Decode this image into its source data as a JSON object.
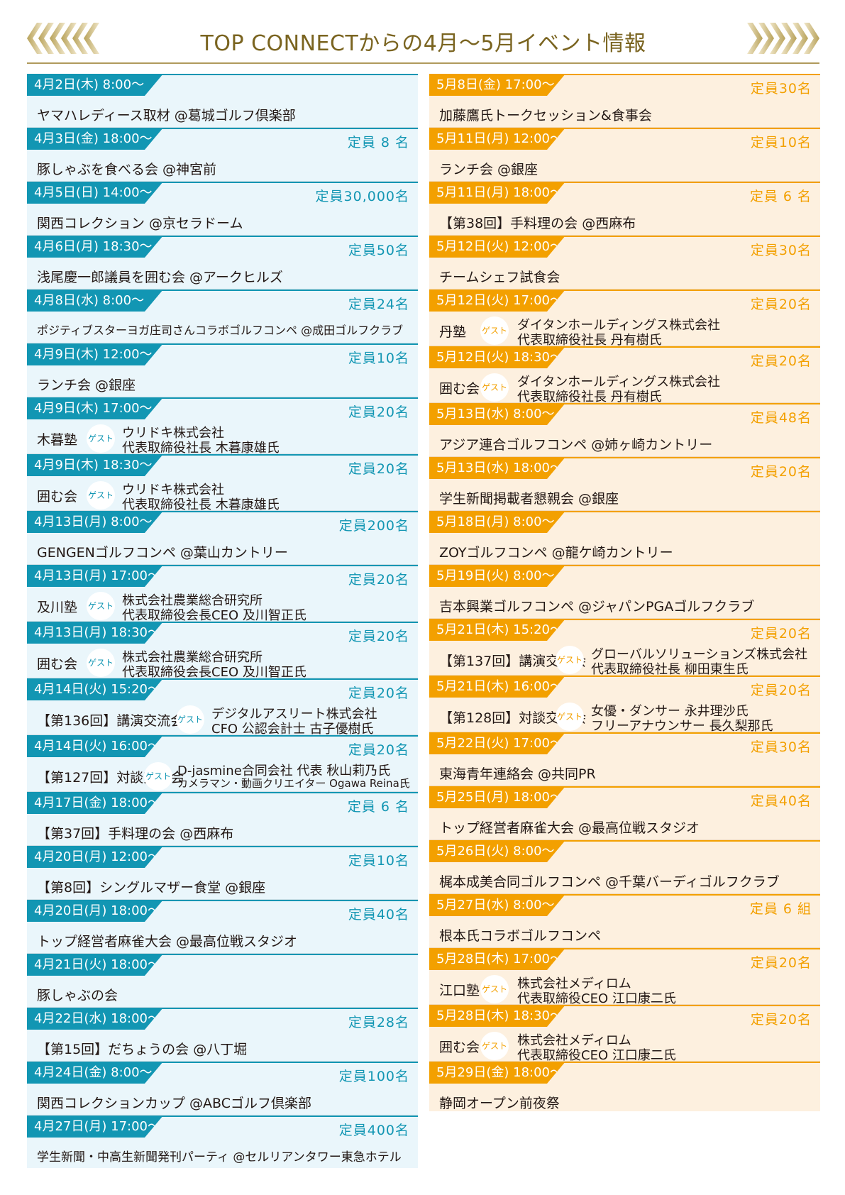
{
  "header": {
    "title": "TOP CONNECTからの4月〜5月イベント情報"
  },
  "april": [
    {
      "date": "4月2日(木) 8:00〜",
      "capacity": "",
      "title": "ヤマハレディース取材 @葛城ゴルフ倶楽部"
    },
    {
      "date": "4月3日(金) 18:00〜",
      "capacity": "定員 8 名",
      "title": "豚しゃぶを食べる会 @神宮前"
    },
    {
      "date": "4月5日(日) 14:00〜",
      "capacity": "定員30,000名",
      "title": "関西コレクション @京セラドーム"
    },
    {
      "date": "4月6日(月) 18:30〜",
      "capacity": "定員50名",
      "title": "浅尾慶一郎議員を囲む会 @アークヒルズ"
    },
    {
      "date": "4月8日(水) 8:00〜",
      "capacity": "定員24名",
      "title": "ポジティブスターヨガ庄司さんコラボゴルフコンペ @成田ゴルフクラブ"
    },
    {
      "date": "4月9日(木) 12:00〜",
      "capacity": "定員10名",
      "title": "ランチ会 @銀座"
    },
    {
      "date": "4月9日(木) 17:00〜",
      "capacity": "定員20名",
      "label": "木暮塾",
      "guest": "ゲスト",
      "g1": "ウリドキ株式会社",
      "g2": "代表取締役社長 木暮康雄氏"
    },
    {
      "date": "4月9日(木) 18:30〜",
      "capacity": "定員20名",
      "label": "囲む会",
      "guest": "ゲスト",
      "g1": "ウリドキ株式会社",
      "g2": "代表取締役社長 木暮康雄氏"
    },
    {
      "date": "4月13日(月) 8:00〜",
      "capacity": "定員200名",
      "title": "GENGENゴルフコンペ @葉山カントリー"
    },
    {
      "date": "4月13日(月) 17:00〜",
      "capacity": "定員20名",
      "label": "及川塾",
      "guest": "ゲスト",
      "g1": "株式会社農業総合研究所",
      "g2": "代表取締役会長CEO 及川智正氏"
    },
    {
      "date": "4月13日(月) 18:30〜",
      "capacity": "定員20名",
      "label": "囲む会",
      "guest": "ゲスト",
      "g1": "株式会社農業総合研究所",
      "g2": "代表取締役会長CEO 及川智正氏"
    },
    {
      "date": "4月14日(火) 15:20〜",
      "capacity": "定員20名",
      "label": "【第136回】講演交流会",
      "guest": "ゲスト",
      "g1": "デジタルアスリート株式会社",
      "g2": "CFO 公認会計士 古子優樹氏"
    },
    {
      "date": "4月14日(火) 16:00〜",
      "capacity": "定員20名",
      "label": "【第127回】対談交流会",
      "guest": "ゲスト",
      "g1": "D-jasmine合同会社 代表 秋山莉乃氏",
      "g2": "カメラマン・動画クリエイター Ogawa Reina氏"
    },
    {
      "date": "4月17日(金) 18:00〜",
      "capacity": "定員 6 名",
      "title": "【第37回】手料理の会 @西麻布"
    },
    {
      "date": "4月20日(月) 12:00〜",
      "capacity": "定員10名",
      "title": "【第8回】シングルマザー食堂 @銀座"
    },
    {
      "date": "4月20日(月) 18:00〜",
      "capacity": "定員40名",
      "title": "トップ経営者麻雀大会 @最高位戦スタジオ"
    },
    {
      "date": "4月21日(火) 18:00〜",
      "capacity": "",
      "title": "豚しゃぶの会"
    },
    {
      "date": "4月22日(水) 18:00〜",
      "capacity": "定員28名",
      "title": "【第15回】だちょうの会 @八丁堀"
    },
    {
      "date": "4月24日(金) 8:00〜",
      "capacity": "定員100名",
      "title": "関西コレクションカップ @ABCゴルフ倶楽部"
    },
    {
      "date": "4月27日(月) 17:00〜",
      "capacity": "定員400名",
      "title": "学生新聞・中高生新聞発刊パーティ @セルリアンタワー東急ホテル"
    }
  ],
  "may": [
    {
      "date": "5月8日(金) 17:00〜",
      "capacity": "定員30名",
      "title": "加藤鷹氏トークセッション&食事会"
    },
    {
      "date": "5月11日(月) 12:00〜",
      "capacity": "定員10名",
      "title": "ランチ会 @銀座"
    },
    {
      "date": "5月11日(月) 18:00〜",
      "capacity": "定員 6 名",
      "title": "【第38回】手料理の会 @西麻布"
    },
    {
      "date": "5月12日(火) 12:00〜",
      "capacity": "定員30名",
      "title": "チームシェフ試食会"
    },
    {
      "date": "5月12日(火) 17:00〜",
      "capacity": "定員20名",
      "label": "丹塾",
      "guest": "ゲスト",
      "g1": "ダイタンホールディングス株式会社",
      "g2": "代表取締役社長 丹有樹氏"
    },
    {
      "date": "5月12日(火) 18:30〜",
      "capacity": "定員20名",
      "label": "囲む会",
      "guest": "ゲスト",
      "g1": "ダイタンホールディングス株式会社",
      "g2": "代表取締役社長 丹有樹氏"
    },
    {
      "date": "5月13日(水) 8:00〜",
      "capacity": "定員48名",
      "title": "アジア連合ゴルフコンペ @姉ヶ崎カントリー"
    },
    {
      "date": "5月13日(水) 18:00〜",
      "capacity": "定員20名",
      "title": "学生新聞掲載者懇親会 @銀座"
    },
    {
      "date": "5月18日(月) 8:00〜",
      "capacity": "",
      "title": "ZOYゴルフコンペ @龍ケ崎カントリー"
    },
    {
      "date": "5月19日(火) 8:00〜",
      "capacity": "",
      "title": "吉本興業ゴルフコンペ @ジャパンPGAゴルフクラブ"
    },
    {
      "date": "5月21日(木) 15:20〜",
      "capacity": "定員20名",
      "label": "【第137回】講演交流会",
      "guest": "ゲスト",
      "g1": "グローバルソリューションズ株式会社",
      "g2": "代表取締役社長 柳田東生氏"
    },
    {
      "date": "5月21日(木) 16:00〜",
      "capacity": "定員20名",
      "label": "【第128回】対談交流会",
      "guest": "ゲスト",
      "g1": "女優・ダンサー 永井理沙氏",
      "g2": "フリーアナウンサー 長久梨那氏"
    },
    {
      "date": "5月22日(火) 17:00〜",
      "capacity": "定員30名",
      "title": "東海青年連絡会 @共同PR"
    },
    {
      "date": "5月25日(月) 18:00〜",
      "capacity": "定員40名",
      "title": "トップ経営者麻雀大会 @最高位戦スタジオ"
    },
    {
      "date": "5月26日(火) 8:00〜",
      "capacity": "",
      "title": "梶本成美合同ゴルフコンペ @千葉バーディゴルフクラブ"
    },
    {
      "date": "5月27日(水) 8:00〜",
      "capacity": "定員 6 組",
      "title": "根本氏コラボゴルフコンペ"
    },
    {
      "date": "5月28日(木) 17:00〜",
      "capacity": "定員20名",
      "label": "江口塾",
      "guest": "ゲスト",
      "g1": "株式会社メディロム",
      "g2": "代表取締役CEO 江口康二氏"
    },
    {
      "date": "5月28日(木) 18:30〜",
      "capacity": "定員20名",
      "label": "囲む会",
      "guest": "ゲスト",
      "g1": "株式会社メディロム",
      "g2": "代表取締役CEO 江口康二氏"
    },
    {
      "date": "5月29日(金) 18:00〜",
      "capacity": "",
      "title": "静岡オープン前夜祭"
    }
  ]
}
